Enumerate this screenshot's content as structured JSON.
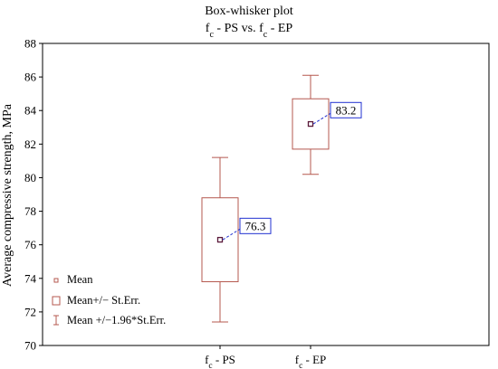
{
  "chart_data": {
    "type": "box",
    "title": "Box-whisker plot",
    "subtitle": {
      "base_left": "f",
      "sub_left": "c",
      "mid": " - PS vs. ",
      "base_right": "f",
      "sub_right": "c",
      "tail": " - EP"
    },
    "ylabel": "Average compressive strength, MPa",
    "xlabel": "",
    "ylim": [
      70,
      88
    ],
    "yticks": [
      70,
      72,
      74,
      76,
      78,
      80,
      82,
      84,
      86,
      88
    ],
    "grid": false,
    "legend_position": "bottom-left",
    "categories": [
      {
        "base": "f",
        "sub": "c",
        "suffix": " - PS"
      },
      {
        "base": "f",
        "sub": "c",
        "suffix": " - EP"
      }
    ],
    "series": [
      {
        "mean": 76.3,
        "mean_label": "76.3",
        "box_low": 73.8,
        "box_high": 78.8,
        "whisker_low": 71.4,
        "whisker_high": 81.2
      },
      {
        "mean": 83.2,
        "mean_label": "83.2",
        "box_low": 81.7,
        "box_high": 84.7,
        "whisker_low": 80.2,
        "whisker_high": 86.1
      }
    ],
    "legend": [
      {
        "symbol": "mean",
        "label": "Mean"
      },
      {
        "symbol": "box",
        "label": "Mean+/− St.Err."
      },
      {
        "symbol": "whisker",
        "label": "Mean +/−1.96*St.Err."
      }
    ],
    "colors": {
      "box": "#b5584f",
      "mean_marker": "#5a1a3a",
      "label_border": "#2030d0",
      "connector": "#2030d0"
    }
  }
}
